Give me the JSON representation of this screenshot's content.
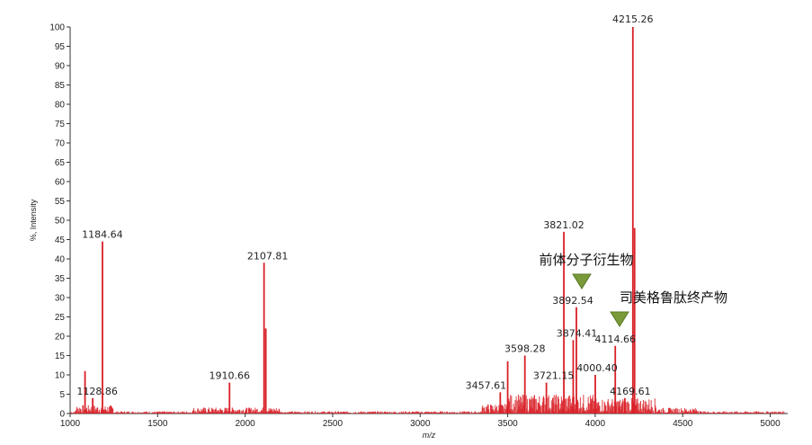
{
  "chart_data": {
    "type": "line",
    "xlabel": "m/z",
    "ylabel": "%, Intensity",
    "xlim": [
      1000,
      5100
    ],
    "ylim": [
      0,
      100
    ],
    "xticks": [
      1000,
      1500,
      2000,
      2500,
      3000,
      3500,
      4000,
      4500,
      5000
    ],
    "yticks": [
      0,
      5,
      10,
      15,
      20,
      25,
      30,
      35,
      40,
      45,
      50,
      55,
      60,
      65,
      70,
      75,
      80,
      85,
      90,
      95,
      100
    ],
    "series_color": "#d92027",
    "peaks": [
      {
        "mz": 1085,
        "intensity": 11
      },
      {
        "mz": 1128.86,
        "intensity": 4,
        "label": "1128.86"
      },
      {
        "mz": 1184.64,
        "intensity": 44.5,
        "label": "1184.64"
      },
      {
        "mz": 1910.66,
        "intensity": 8,
        "label": "1910.66"
      },
      {
        "mz": 2107.81,
        "intensity": 39,
        "label": "2107.81"
      },
      {
        "mz": 2118,
        "intensity": 22
      },
      {
        "mz": 3457.61,
        "intensity": 5.5,
        "label": "3457.61"
      },
      {
        "mz": 3500,
        "intensity": 13.5
      },
      {
        "mz": 3598.28,
        "intensity": 15,
        "label": "3598.28"
      },
      {
        "mz": 3721.15,
        "intensity": 8,
        "label": "3721.15"
      },
      {
        "mz": 3821.02,
        "intensity": 47,
        "label": "3821.02"
      },
      {
        "mz": 3874.41,
        "intensity": 19,
        "label": "3874.41"
      },
      {
        "mz": 3892.54,
        "intensity": 27.5,
        "label": "3892.54"
      },
      {
        "mz": 4000.4,
        "intensity": 10,
        "label": "4000.40"
      },
      {
        "mz": 4114.66,
        "intensity": 17.5,
        "label": "4114.66"
      },
      {
        "mz": 4169.61,
        "intensity": 4,
        "label": "4169.61"
      },
      {
        "mz": 4215.26,
        "intensity": 100,
        "label": "4215.26"
      },
      {
        "mz": 4225,
        "intensity": 48
      }
    ],
    "annotations": [
      {
        "text": "前体分子衍生物",
        "target_mz": 3892.54,
        "marker_color": "#7a9a3a"
      },
      {
        "text": "司美格鲁肽终产物",
        "target_mz": 4114.66,
        "marker_color": "#7a9a3a"
      }
    ]
  }
}
